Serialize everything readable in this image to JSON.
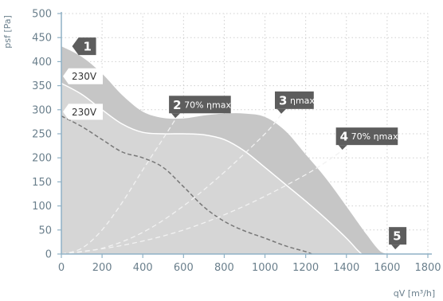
{
  "chart_data": {
    "type": "area",
    "xlabel": "qV [m³/h]",
    "ylabel": "psf [Pa]",
    "xlim": [
      0,
      1800
    ],
    "ylim": [
      0,
      500
    ],
    "x_ticks": [
      "0",
      "200",
      "400",
      "600",
      "800",
      "1000",
      "1200",
      "1400",
      "1600",
      "1800"
    ],
    "y_ticks": [
      "0",
      "50",
      "100",
      "150",
      "200",
      "250",
      "300",
      "350",
      "400",
      "450",
      "500"
    ],
    "grid": true,
    "series": [
      {
        "name": "1",
        "x": [
          0,
          100,
          200,
          300,
          400,
          500,
          600,
          700,
          800,
          900,
          1000,
          1100,
          1200,
          1300,
          1400,
          1500,
          1560,
          1600
        ],
        "y": [
          432,
          410,
          375,
          330,
          296,
          283,
          282,
          288,
          292,
          292,
          285,
          256,
          207,
          157,
          99,
          40,
          8,
          0
        ]
      },
      {
        "name": "230V",
        "x": [
          0,
          100,
          200,
          300,
          400,
          500,
          600,
          700,
          800,
          900,
          1000,
          1100,
          1200,
          1300,
          1400,
          1450,
          1475
        ],
        "y": [
          355,
          332,
          300,
          270,
          253,
          250,
          250,
          248,
          238,
          214,
          180,
          145,
          110,
          73,
          33,
          10,
          0
        ]
      },
      {
        "name": "230V",
        "x": [
          0,
          100,
          200,
          300,
          400,
          500,
          600,
          700,
          800,
          900,
          1000,
          1100,
          1200,
          1230
        ],
        "y": [
          287,
          265,
          238,
          212,
          200,
          180,
          140,
          98,
          68,
          48,
          33,
          17,
          5,
          0
        ]
      },
      {
        "name": "70% ηmax",
        "x": [
          0,
          100,
          200,
          300,
          400,
          500,
          560
        ],
        "y": [
          0,
          12,
          50,
          108,
          175,
          240,
          280
        ]
      },
      {
        "name": "ηmax",
        "x": [
          0,
          200,
          400,
          600,
          800,
          1000,
          1080
        ],
        "y": [
          0,
          12,
          45,
          100,
          170,
          250,
          290
        ]
      },
      {
        "name": "70% ηmax",
        "x": [
          0,
          300,
          600,
          900,
          1200,
          1380
        ],
        "y": [
          0,
          18,
          50,
          100,
          165,
          215
        ]
      }
    ],
    "tags": [
      {
        "num": "1",
        "text": "",
        "x": 100,
        "y": 432
      },
      {
        "num": "2",
        "text": "70% ηmax",
        "x": 560,
        "y": 281
      },
      {
        "num": "3",
        "text": "ηmax",
        "x": 1080,
        "y": 290
      },
      {
        "num": "4",
        "text": "70% ηmax",
        "x": 1380,
        "y": 215
      },
      {
        "num": "5",
        "text": "",
        "x": 1640,
        "y": 8
      }
    ],
    "voltage_labels": [
      {
        "text": "230V",
        "x": 0,
        "y": 368
      },
      {
        "text": "230V",
        "x": 0,
        "y": 294
      }
    ],
    "colors": {
      "outer_area": "#c6c6c6",
      "inner_area": "#d6d6d6",
      "tag": "#5d5d5d",
      "curve_white": "#ffffff",
      "curve_dashed": "#777777",
      "efficiency": "#f2f2f2",
      "grid": "#cfcfcf",
      "axis": "#8fb1c5",
      "text": "#6a7f8c"
    }
  }
}
